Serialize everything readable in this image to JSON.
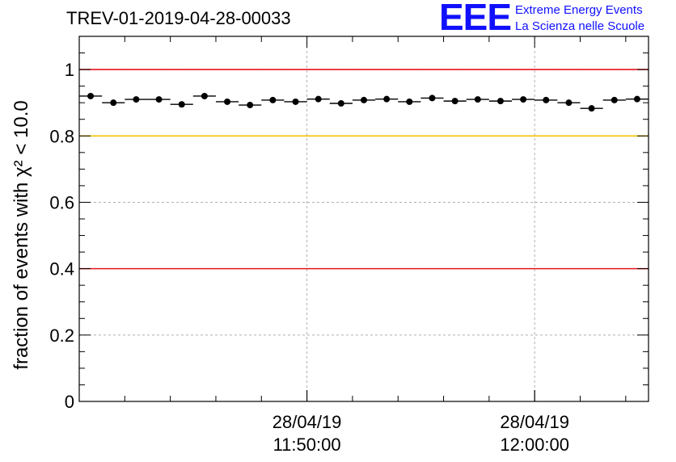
{
  "logo": {
    "letters": "EEE",
    "line1": "Extreme Energy Events",
    "line2": "La Scienza nelle Scuole"
  },
  "chart_data": {
    "type": "scatter",
    "title": "TREV-01-2019-04-28-00033",
    "ylabel": "fraction of events with χ² < 10.0",
    "xlabel": "",
    "ylim": [
      0,
      1.1
    ],
    "yticks": [
      0,
      0.2,
      0.4,
      0.6,
      0.8,
      1
    ],
    "ytick_labels": [
      "0",
      "0.2",
      "0.4",
      "0.6",
      "0.8",
      "1"
    ],
    "x_range_minutes": [
      0,
      25
    ],
    "xtick_major_minutes": [
      10,
      20
    ],
    "xtick_labels": [
      {
        "date": "28/04/19",
        "time": "11:50:00"
      },
      {
        "date": "28/04/19",
        "time": "12:00:00"
      }
    ],
    "grid": true,
    "bin_width_minutes": 1,
    "series": [
      {
        "name": "fraction",
        "x_minutes": [
          0.5,
          1.5,
          2.5,
          3.5,
          4.5,
          5.5,
          6.5,
          7.5,
          8.5,
          9.5,
          10.5,
          11.5,
          12.5,
          13.5,
          14.5,
          15.5,
          16.5,
          17.5,
          18.5,
          19.5,
          20.5,
          21.5,
          22.5,
          23.5,
          24.5
        ],
        "values": [
          0.92,
          0.9,
          0.91,
          0.91,
          0.895,
          0.92,
          0.903,
          0.893,
          0.908,
          0.903,
          0.911,
          0.898,
          0.908,
          0.911,
          0.903,
          0.914,
          0.905,
          0.91,
          0.905,
          0.91,
          0.908,
          0.9,
          0.883,
          0.908,
          0.911
        ]
      }
    ],
    "reference_lines": [
      {
        "y": 1.0,
        "color": "#e8141c"
      },
      {
        "y": 0.8,
        "color": "#f5c000"
      },
      {
        "y": 0.4,
        "color": "#e8141c"
      }
    ]
  }
}
